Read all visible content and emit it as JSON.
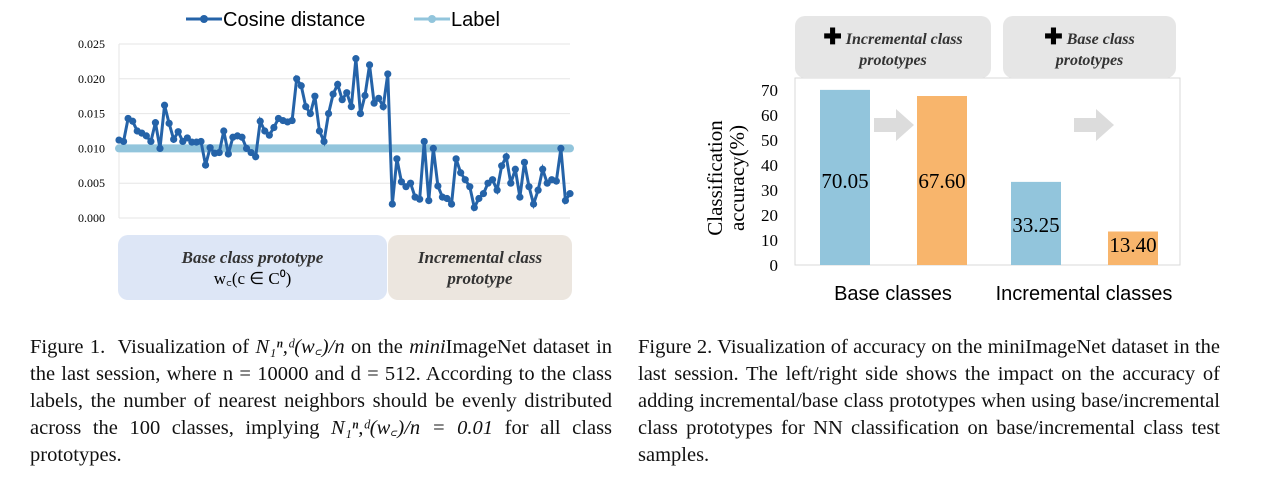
{
  "figure1": {
    "caption_prefix": "Figure 1.",
    "caption_part1": "Visualization of",
    "caption_math1": "N₁ⁿ,ᵈ(w꜀)/n",
    "caption_part2": "on the",
    "caption_italic": "mini",
    "caption_part3": "ImageNet dataset in the last session, where n = 10000 and d = 512. According to the class labels, the number of nearest neighbors should be evenly distributed across the 100 classes, implying",
    "caption_math2": "N₁ⁿ,ᵈ(w꜀)/n = 0.01",
    "caption_part4": "for all class prototypes.",
    "region_base_line1": "Base class prototype",
    "region_base_line2": "w꜀(c ∈ C⁰)",
    "region_incr_line1": "Incremental class",
    "region_incr_line2": "prototype",
    "colors": {
      "cosine": "#2563a8",
      "label": "#92c5dc",
      "base_region": "#dde6f6",
      "incr_region": "#ece6df"
    }
  },
  "figure2": {
    "caption": "Figure 2. Visualization of accuracy on the miniImageNet dataset in the last session. The left/right side shows the impact on the accuracy of adding incremental/base class prototypes when using base/incremental class prototypes for NN classification on base/incremental class test samples.",
    "box_left_line1": "Incremental class",
    "box_left_line2": "prototypes",
    "box_right_line1": "Base class",
    "box_right_line2": "prototypes",
    "colors": {
      "blue": "#92c5dc",
      "orange": "#f8b56c"
    }
  },
  "chart_data": [
    {
      "type": "line",
      "title": "",
      "xlabel": "",
      "ylabel": "",
      "ylim": [
        0,
        0.025
      ],
      "yticks": [
        "0.000",
        "0.005",
        "0.010",
        "0.015",
        "0.020",
        "0.025"
      ],
      "legend": "top",
      "grid": true,
      "series": [
        {
          "name": "Cosine distance",
          "values": [
            0.0112,
            0.011,
            0.0143,
            0.0139,
            0.0125,
            0.0122,
            0.0118,
            0.011,
            0.0137,
            0.01,
            0.0162,
            0.0136,
            0.0113,
            0.0124,
            0.011,
            0.0115,
            0.0109,
            0.0109,
            0.011,
            0.0076,
            0.0101,
            0.0093,
            0.0094,
            0.0125,
            0.0092,
            0.0116,
            0.0118,
            0.0116,
            0.01,
            0.0094,
            0.0088,
            0.0139,
            0.0125,
            0.0119,
            0.013,
            0.0143,
            0.014,
            0.0138,
            0.014,
            0.02,
            0.019,
            0.016,
            0.015,
            0.0175,
            0.0125,
            0.011,
            0.015,
            0.0178,
            0.0192,
            0.017,
            0.018,
            0.016,
            0.0229,
            0.015,
            0.0176,
            0.022,
            0.0165,
            0.0172,
            0.016,
            0.0207,
            0.002,
            0.0085,
            0.0052,
            0.0045,
            0.005,
            0.003,
            0.0027,
            0.011,
            0.0025,
            0.01,
            0.0046,
            0.003,
            0.0028,
            0.002,
            0.0085,
            0.0065,
            0.0055,
            0.0045,
            0.0015,
            0.0028,
            0.0035,
            0.005,
            0.0055,
            0.004,
            0.0075,
            0.0088,
            0.005,
            0.007,
            0.003,
            0.008,
            0.0045,
            0.002,
            0.004,
            0.007,
            0.005,
            0.0055,
            0.0053,
            0.01,
            0.0025,
            0.0035
          ]
        },
        {
          "name": "Label",
          "values": "constant 0.01 for all 100 classes",
          "constant": 0.01
        }
      ]
    },
    {
      "type": "bar",
      "title": "",
      "xlabel": "",
      "ylabel": "Classification accuracy(%)",
      "ylim": [
        0,
        70
      ],
      "yticks": [
        "0",
        "10",
        "20",
        "30",
        "40",
        "50",
        "60",
        "70"
      ],
      "categories": [
        "Base classes",
        "Incremental classes"
      ],
      "bars": [
        {
          "value": 70.05,
          "label": "70.05",
          "color": "blue"
        },
        {
          "value": 67.6,
          "label": "67.60",
          "color": "orange"
        },
        {
          "value": 33.25,
          "label": "33.25",
          "color": "blue"
        },
        {
          "value": 13.4,
          "label": "13.40",
          "color": "orange"
        }
      ]
    }
  ]
}
